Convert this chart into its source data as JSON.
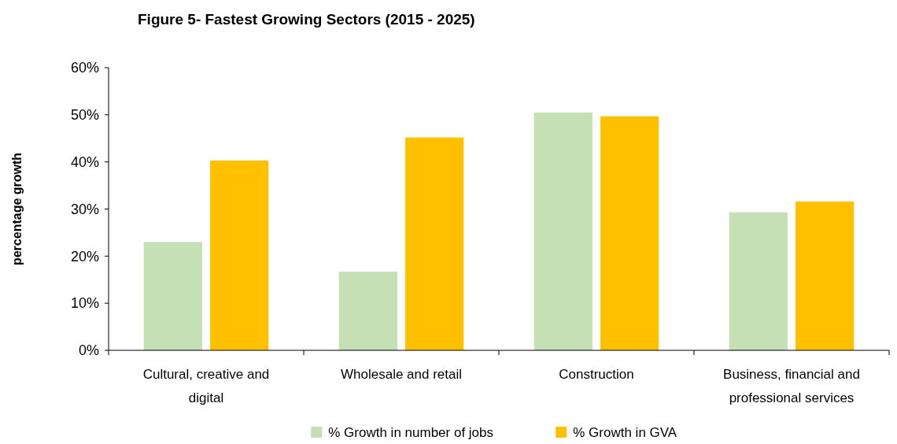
{
  "chart_data": {
    "type": "bar",
    "title": "Figure 5- Fastest Growing Sectors (2015 - 2025)",
    "ylabel": "percentage growth",
    "categories": [
      "Cultural, creative and digital",
      "Wholesale and retail",
      "Construction",
      "Business, financial and professional services"
    ],
    "series": [
      {
        "name": "% Growth in number of jobs",
        "color": "#c5e0b4",
        "values": [
          23,
          16.7,
          50.5,
          29.3
        ]
      },
      {
        "name": "% Growth in GVA",
        "color": "#ffc000",
        "values": [
          40.3,
          45.2,
          49.7,
          31.6
        ]
      }
    ],
    "ylim": [
      0,
      60
    ],
    "yticks": [
      {
        "value": 0,
        "label": "0%"
      },
      {
        "value": 10,
        "label": "10%"
      },
      {
        "value": 20,
        "label": "20%"
      },
      {
        "value": 30,
        "label": "30%"
      },
      {
        "value": 40,
        "label": "40%"
      },
      {
        "value": 50,
        "label": "50%"
      },
      {
        "value": 60,
        "label": "60%"
      }
    ],
    "grid": false,
    "legend": "bottom"
  }
}
